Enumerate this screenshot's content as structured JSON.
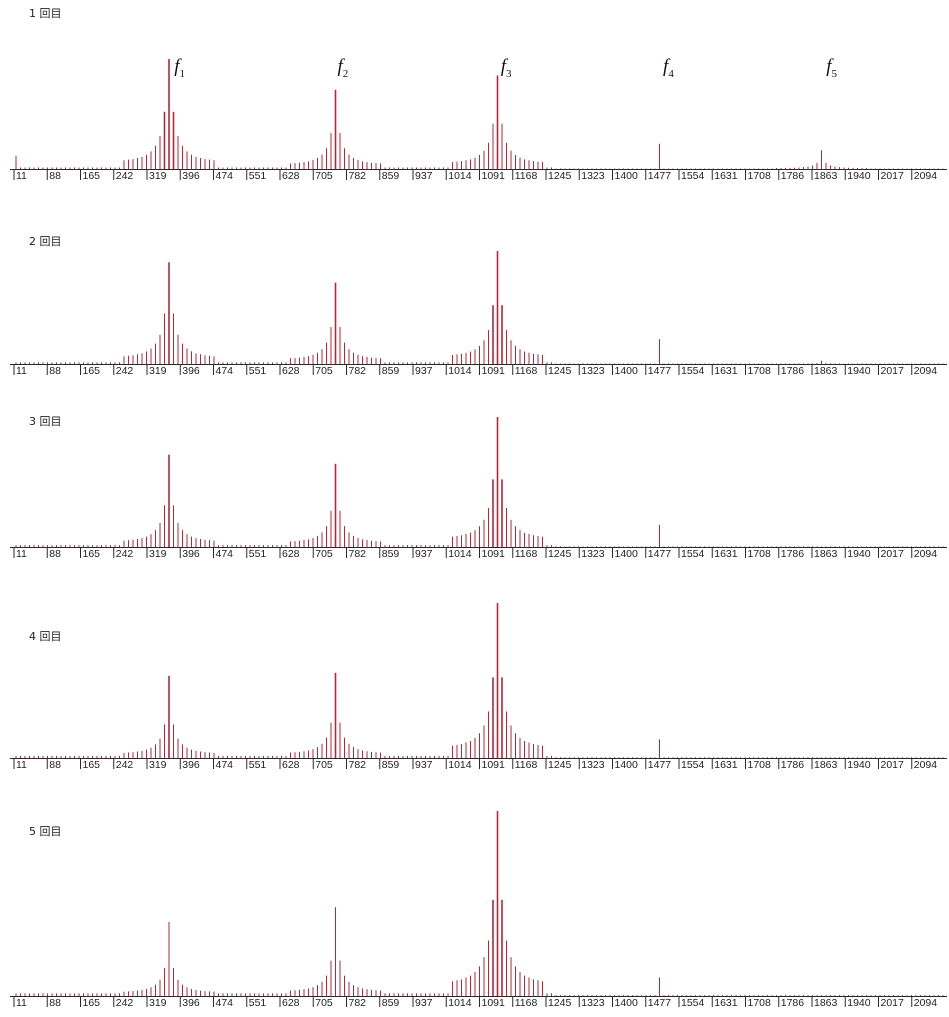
{
  "colors": {
    "bar": "#b0283a",
    "axis": "#2a2a2a",
    "text": "#222222"
  },
  "peak_labels": [
    {
      "main": "f",
      "sub": "1"
    },
    {
      "main": "f",
      "sub": "2"
    },
    {
      "main": "f",
      "sub": "3"
    },
    {
      "main": "f",
      "sub": "4"
    },
    {
      "main": "f",
      "sub": "5"
    }
  ],
  "chart_data": [
    {
      "type": "bar",
      "title": "1 回目",
      "x_ticks": [
        "11",
        "88",
        "165",
        "242",
        "319",
        "396",
        "474",
        "551",
        "628",
        "705",
        "782",
        "859",
        "937",
        "1014",
        "1091",
        "1168",
        "1245",
        "1323",
        "1400",
        "1477",
        "1554",
        "1631",
        "1708",
        "1786",
        "1863",
        "1940",
        "2017",
        "2094"
      ],
      "xlim": [
        11,
        2150
      ],
      "ylim": [
        0,
        1
      ],
      "grid": false,
      "peaks": [
        {
          "x": 370,
          "value": 1.0
        },
        {
          "x": 745,
          "value": 0.72
        },
        {
          "x": 1120,
          "value": 0.85
        },
        {
          "x": 1493,
          "value": 0.23
        },
        {
          "x": 1868,
          "value": 0.17
        }
      ]
    },
    {
      "type": "bar",
      "title": "2 回目",
      "x_ticks": [
        "11",
        "88",
        "165",
        "242",
        "319",
        "396",
        "474",
        "551",
        "628",
        "705",
        "782",
        "859",
        "937",
        "1014",
        "1091",
        "1168",
        "1245",
        "1323",
        "1400",
        "1477",
        "1554",
        "1631",
        "1708",
        "1786",
        "1863",
        "1940",
        "2017",
        "2094"
      ],
      "xlim": [
        11,
        2150
      ],
      "ylim": [
        0,
        1
      ],
      "grid": false,
      "peaks": [
        {
          "x": 370,
          "value": 0.9
        },
        {
          "x": 745,
          "value": 0.72
        },
        {
          "x": 1120,
          "value": 1.0
        },
        {
          "x": 1493,
          "value": 0.22
        },
        {
          "x": 1868,
          "value": 0.03
        }
      ]
    },
    {
      "type": "bar",
      "title": "3 回目",
      "x_ticks": [
        "11",
        "88",
        "165",
        "242",
        "319",
        "396",
        "474",
        "551",
        "628",
        "705",
        "782",
        "859",
        "937",
        "1014",
        "1091",
        "1168",
        "1245",
        "1323",
        "1400",
        "1477",
        "1554",
        "1631",
        "1708",
        "1786",
        "1863",
        "1940",
        "2017",
        "2094"
      ],
      "xlim": [
        11,
        2150
      ],
      "ylim": [
        0,
        1
      ],
      "grid": false,
      "peaks": [
        {
          "x": 370,
          "value": 0.71
        },
        {
          "x": 745,
          "value": 0.64
        },
        {
          "x": 1120,
          "value": 1.0
        },
        {
          "x": 1493,
          "value": 0.17
        },
        {
          "x": 1868,
          "value": 0.0
        }
      ]
    },
    {
      "type": "bar",
      "title": "4 回目",
      "x_ticks": [
        "11",
        "88",
        "165",
        "242",
        "319",
        "396",
        "474",
        "551",
        "628",
        "705",
        "782",
        "859",
        "937",
        "1014",
        "1091",
        "1168",
        "1245",
        "1323",
        "1400",
        "1477",
        "1554",
        "1631",
        "1708",
        "1786",
        "1863",
        "1940",
        "2017",
        "2094"
      ],
      "xlim": [
        11,
        2150
      ],
      "ylim": [
        0,
        1
      ],
      "grid": false,
      "peaks": [
        {
          "x": 370,
          "value": 0.53
        },
        {
          "x": 745,
          "value": 0.55
        },
        {
          "x": 1120,
          "value": 1.0
        },
        {
          "x": 1493,
          "value": 0.12
        },
        {
          "x": 1868,
          "value": 0.0
        }
      ]
    },
    {
      "type": "bar",
      "title": "5 回目",
      "x_ticks": [
        "11",
        "88",
        "165",
        "242",
        "319",
        "396",
        "474",
        "551",
        "628",
        "705",
        "782",
        "859",
        "937",
        "1014",
        "1091",
        "1168",
        "1245",
        "1323",
        "1400",
        "1477",
        "1554",
        "1631",
        "1708",
        "1786",
        "1863",
        "1940",
        "2017",
        "2094"
      ],
      "xlim": [
        11,
        2150
      ],
      "ylim": [
        0,
        1
      ],
      "grid": false,
      "peaks": [
        {
          "x": 370,
          "value": 0.4
        },
        {
          "x": 745,
          "value": 0.48
        },
        {
          "x": 1120,
          "value": 1.0
        },
        {
          "x": 1493,
          "value": 0.1
        },
        {
          "x": 1868,
          "value": 0.0
        }
      ]
    }
  ]
}
